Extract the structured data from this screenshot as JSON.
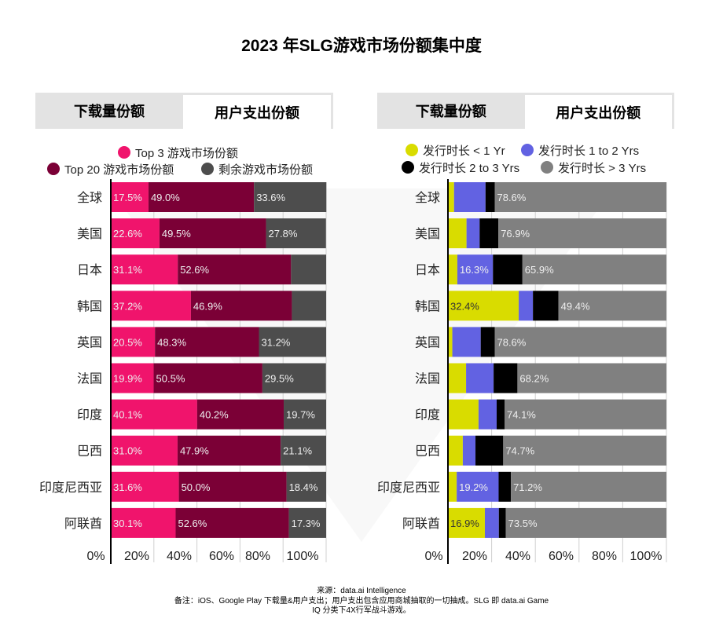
{
  "title": "2023 年SLG游戏市场份额集中度",
  "left_tabs": [
    "下载量份额",
    "用户支出份额"
  ],
  "right_tabs": [
    "下载量份额",
    "用户支出份额"
  ],
  "active_tab_index": 1,
  "footer": {
    "source": "来源：data.ai Intelligence",
    "note1": "备注：iOS、Google Play 下载量&用户支出；用户支出包含应用商城抽取的一切抽成。SLG 即 data.ai Game",
    "note2": "IQ 分类下4X行军战斗游戏。"
  },
  "chart_data": [
    {
      "type": "bar",
      "orientation": "horizontal-stacked-100",
      "categories": [
        "全球",
        "美国",
        "日本",
        "韩国",
        "英国",
        "法国",
        "印度",
        "巴西",
        "印度尼西亚",
        "阿联酋"
      ],
      "x_ticks": [
        "0%",
        "20%",
        "40%",
        "60%",
        "80%",
        "100%"
      ],
      "xlim": [
        0,
        100
      ],
      "legend": "top",
      "series": [
        {
          "name": "Top 3 游戏市场份额",
          "color": "#f0146c",
          "values": [
            17.5,
            22.6,
            31.1,
            37.2,
            20.5,
            19.9,
            40.1,
            31.0,
            31.6,
            30.1
          ],
          "labels": [
            "17.5%",
            "22.6%",
            "31.1%",
            "37.2%",
            "20.5%",
            "19.9%",
            "40.1%",
            "31.0%",
            "31.6%",
            "30.1%"
          ]
        },
        {
          "name": "Top 20 游戏市场份额",
          "color": "#7b0036",
          "values": [
            49.0,
            49.5,
            52.6,
            46.9,
            48.3,
            50.5,
            40.2,
            47.9,
            50.0,
            52.6
          ],
          "labels": [
            "49.0%",
            "49.5%",
            "52.6%",
            "46.9%",
            "48.3%",
            "50.5%",
            "40.2%",
            "47.9%",
            "50.0%",
            "52.6%"
          ]
        },
        {
          "name": "剩余游戏市场份额",
          "color": "#4d4d4d",
          "values": [
            33.6,
            27.8,
            16.3,
            15.9,
            31.2,
            29.5,
            19.7,
            21.1,
            18.4,
            17.3
          ],
          "labels": [
            "33.6%",
            "27.8%",
            null,
            null,
            "31.2%",
            "29.5%",
            "19.7%",
            "21.1%",
            "18.4%",
            "17.3%"
          ]
        }
      ]
    },
    {
      "type": "bar",
      "orientation": "horizontal-stacked-100",
      "categories": [
        "全球",
        "美国",
        "日本",
        "韩国",
        "英国",
        "法国",
        "印度",
        "巴西",
        "印度尼西亚",
        "阿联酋"
      ],
      "x_ticks": [
        "0%",
        "20%",
        "40%",
        "60%",
        "80%",
        "100%"
      ],
      "xlim": [
        0,
        100
      ],
      "legend": "top",
      "series": [
        {
          "name": "发行时长 < 1 Yr",
          "color": "#d9dc00",
          "values": [
            2.8,
            8.5,
            4.3,
            32.4,
            2.0,
            8.3,
            14.0,
            6.8,
            4.0,
            16.9
          ],
          "labels": [
            null,
            null,
            null,
            "32.4%",
            null,
            null,
            null,
            null,
            null,
            "16.9%"
          ]
        },
        {
          "name": "发行时长 1 to 2 Yrs",
          "color": "#6262e2",
          "values": [
            14.4,
            6.0,
            16.3,
            6.5,
            13.0,
            12.6,
            8.3,
            5.8,
            19.2,
            6.4
          ],
          "labels": [
            null,
            null,
            "16.3%",
            null,
            null,
            null,
            null,
            null,
            "19.2%",
            null
          ]
        },
        {
          "name": "发行时长 2 to 3 Yrs",
          "color": "#000000",
          "values": [
            4.2,
            8.6,
            13.5,
            11.7,
            6.4,
            10.9,
            3.6,
            12.7,
            5.6,
            3.2
          ],
          "labels": [
            null,
            null,
            null,
            null,
            null,
            null,
            null,
            null,
            null,
            null
          ]
        },
        {
          "name": "发行时长 > 3 Yrs",
          "color": "#808080",
          "values": [
            78.6,
            76.9,
            65.9,
            49.4,
            78.6,
            68.2,
            74.1,
            74.7,
            71.2,
            73.5
          ],
          "labels": [
            "78.6%",
            "76.9%",
            "65.9%",
            "49.4%",
            "78.6%",
            "68.2%",
            "74.1%",
            "74.7%",
            "71.2%",
            "73.5%"
          ]
        }
      ]
    }
  ]
}
